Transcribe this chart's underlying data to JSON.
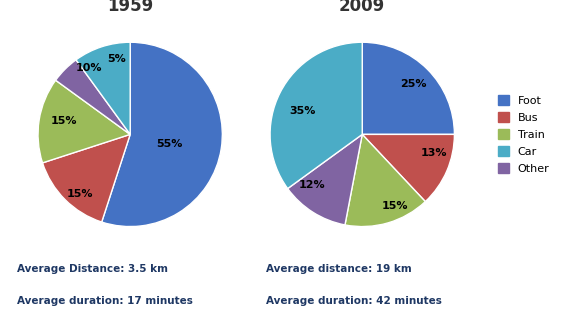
{
  "title_1959": "1959",
  "title_2009": "2009",
  "categories": [
    "Foot",
    "Bus",
    "Train",
    "Car",
    "Other"
  ],
  "colors": [
    "#4472C4",
    "#C0504D",
    "#9BBB59",
    "#4BACC6",
    "#8064A2"
  ],
  "values_1959": [
    55,
    15,
    15,
    10,
    5
  ],
  "values_2009": [
    25,
    13,
    15,
    35,
    12
  ],
  "labels_1959": [
    "55%",
    "15%",
    "15%",
    "10%",
    "5%"
  ],
  "labels_2009": [
    "25%",
    "13%",
    "15%",
    "35%",
    "12%"
  ],
  "startangle_1959": 90,
  "startangle_2009": 90,
  "text_1959_line1": "Average Distance: 3.5 km",
  "text_1959_line2": "Average duration: 17 minutes",
  "text_2009_line1": "Average distance: 19 km",
  "text_2009_line2": "Average duration: 42 minutes"
}
